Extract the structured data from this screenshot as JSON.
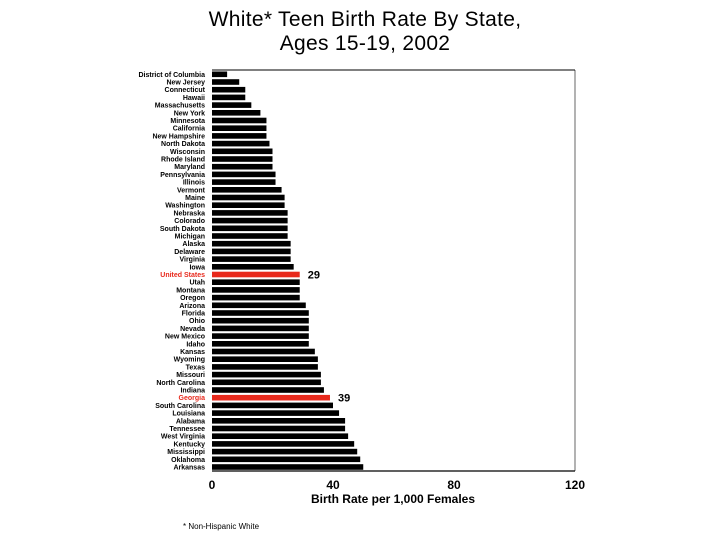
{
  "chart_data": {
    "type": "bar",
    "orientation": "horizontal",
    "title_lines": [
      "White* Teen Birth Rate By State,",
      "Ages 15-19, 2002"
    ],
    "xlabel": "Birth Rate per 1,000 Females",
    "ylabel": "",
    "xlim": [
      0,
      120
    ],
    "xticks": [
      0,
      40,
      80,
      120
    ],
    "grid": false,
    "footnote": "* Non-Hispanic White",
    "colors": {
      "default": "#000000",
      "highlight": "#e8291c"
    },
    "highlight_categories": [
      "United States",
      "Georgia"
    ],
    "data_labels": [
      {
        "category": "United States",
        "text": "29"
      },
      {
        "category": "Georgia",
        "text": "39"
      }
    ],
    "categories": [
      "District of Columbia",
      "New Jersey",
      "Connecticut",
      "Hawaii",
      "Massachusetts",
      "New York",
      "Minnesota",
      "California",
      "New Hampshire",
      "North Dakota",
      "Wisconsin",
      "Rhode Island",
      "Maryland",
      "Pennsylvania",
      "Illinois",
      "Vermont",
      "Maine",
      "Washington",
      "Nebraska",
      "Colorado",
      "South Dakota",
      "Michigan",
      "Alaska",
      "Delaware",
      "Virginia",
      "Iowa",
      "United States",
      "Utah",
      "Montana",
      "Oregon",
      "Arizona",
      "Florida",
      "Ohio",
      "Nevada",
      "New Mexico",
      "Idaho",
      "Kansas",
      "Wyoming",
      "Texas",
      "Missouri",
      "North Carolina",
      "Indiana",
      "Georgia",
      "South Carolina",
      "Louisiana",
      "Alabama",
      "Tennessee",
      "West Virginia",
      "Kentucky",
      "Mississippi",
      "Oklahoma",
      "Arkansas"
    ],
    "values": [
      5,
      9,
      11,
      11,
      13,
      16,
      18,
      18,
      18,
      19,
      20,
      20,
      20,
      21,
      21,
      23,
      24,
      24,
      25,
      25,
      25,
      25,
      26,
      26,
      26,
      27,
      29,
      29,
      29,
      29,
      31,
      32,
      32,
      32,
      32,
      32,
      34,
      35,
      35,
      36,
      36,
      37,
      39,
      40,
      42,
      44,
      44,
      45,
      47,
      48,
      49,
      50
    ]
  }
}
